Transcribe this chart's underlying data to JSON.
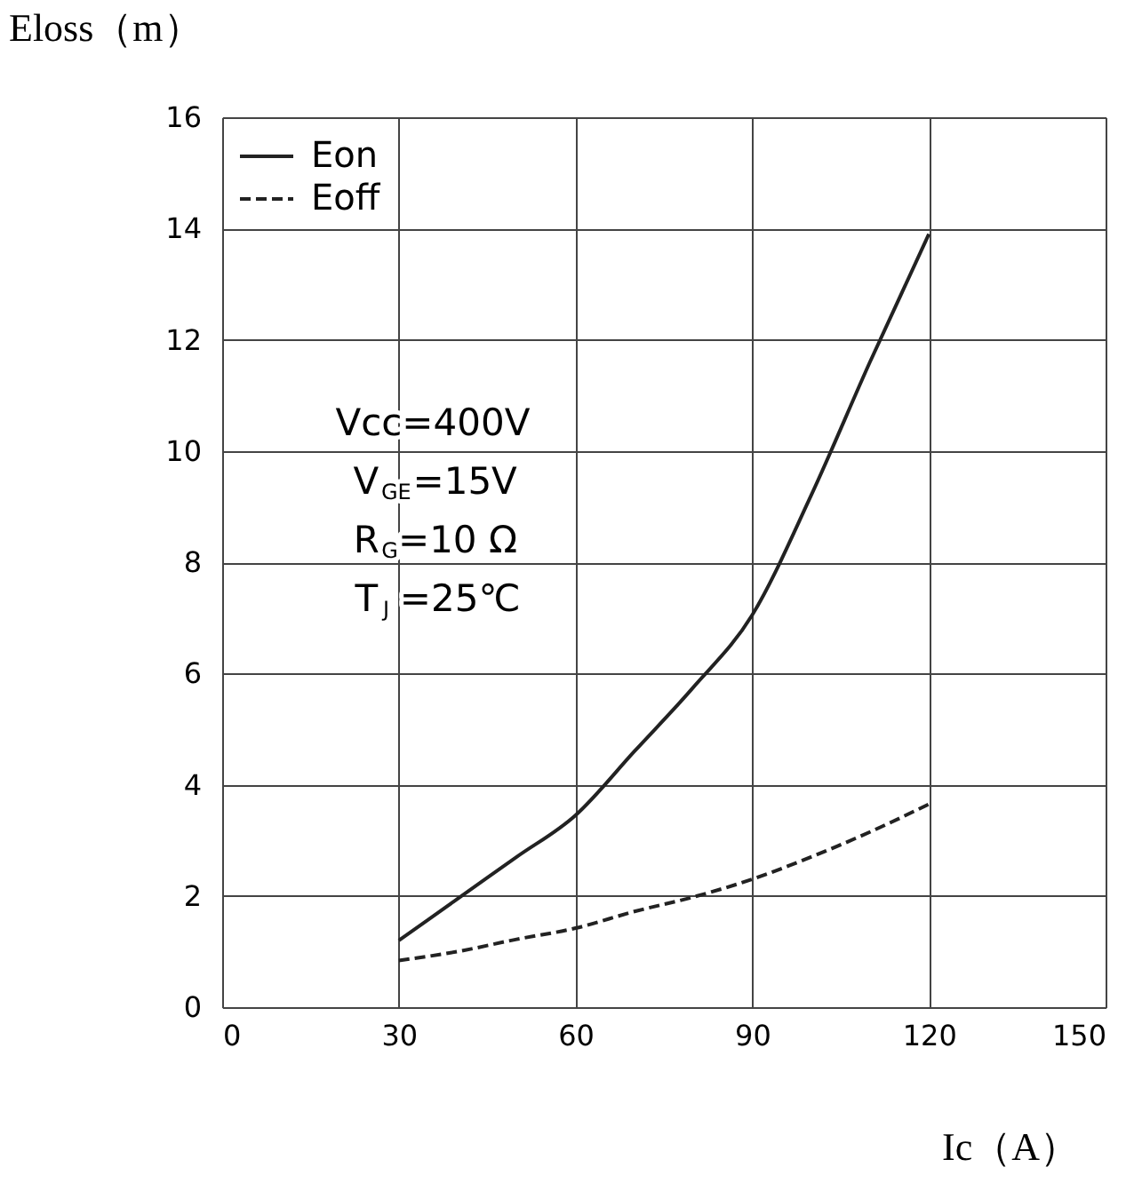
{
  "chart_data": {
    "type": "line",
    "xlabel": "Ic（A）",
    "ylabel": "Eloss（m）",
    "x": [
      30,
      40,
      50,
      60,
      70,
      80,
      90,
      100,
      110,
      120
    ],
    "series": [
      {
        "name": "Eon",
        "color": "#222222",
        "line_style": "solid",
        "values": [
          1.2,
          1.95,
          2.7,
          3.45,
          4.6,
          5.75,
          7.05,
          9.2,
          11.6,
          13.9
        ]
      },
      {
        "name": "Eoff",
        "color": "#222222",
        "line_style": "dashed",
        "values": [
          0.84,
          1.0,
          1.22,
          1.42,
          1.72,
          1.98,
          2.3,
          2.7,
          3.15,
          3.65
        ]
      }
    ],
    "xlim": [
      0,
      150
    ],
    "xticks": [
      0,
      30,
      60,
      90,
      120,
      150
    ],
    "ylim": [
      0,
      16
    ],
    "yticks": [
      0,
      2,
      4,
      6,
      8,
      10,
      12,
      14,
      16
    ],
    "grid": true,
    "legend": "top left",
    "marker": "none",
    "annotations": [
      "Vcc=400V",
      "V$_{GE}$=15V",
      "R$_{G}$=10 Ω",
      "T$_{J}$=25℃"
    ]
  }
}
